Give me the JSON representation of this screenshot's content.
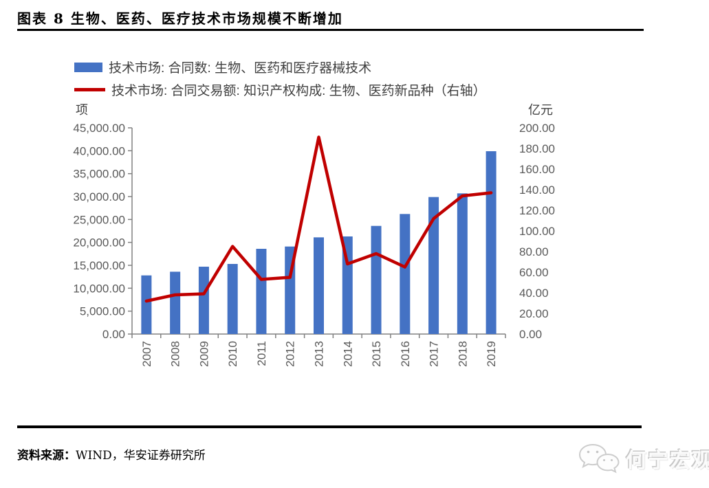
{
  "figure": {
    "title": "图表 8  生物、医药、医疗技术市场规模不断增加",
    "source_label": "资料来源：",
    "source_text": "WIND，华安证券研究所"
  },
  "legend": {
    "items": [
      {
        "marker": "bar",
        "color": "#4472C4",
        "label": "技术市场: 合同数: 生物、医药和医疗器械技术"
      },
      {
        "marker": "line",
        "color": "#C00000",
        "label": "技术市场: 合同交易额: 知识产权构成: 生物、医药新品种（右轴）"
      }
    ]
  },
  "axes": {
    "left_unit": "项",
    "right_unit": "亿元"
  },
  "watermark": {
    "icon": "wechat-icon",
    "text": "何宁宏观"
  },
  "chart_data": {
    "type": "bar",
    "subtype": "combo-bar-line-dual-axis",
    "title": "图表 8  生物、医药、医疗技术市场规模不断增加",
    "categories": [
      "2007",
      "2008",
      "2009",
      "2010",
      "2011",
      "2012",
      "2013",
      "2014",
      "2015",
      "2016",
      "2017",
      "2018",
      "2019"
    ],
    "series": [
      {
        "name": "技术市场: 合同数: 生物、医药和医疗器械技术",
        "type": "bar",
        "axis": "left",
        "color": "#4472C4",
        "values": [
          12800,
          13600,
          14700,
          15300,
          18600,
          19100,
          21100,
          21300,
          23600,
          26200,
          29900,
          30700,
          39900
        ]
      },
      {
        "name": "技术市场: 合同交易额: 知识产权构成: 生物、医药新品种（右轴）",
        "type": "line",
        "axis": "right",
        "color": "#C00000",
        "values": [
          32,
          38,
          39,
          85,
          53,
          55,
          191,
          68,
          78,
          65,
          112,
          134,
          137
        ]
      }
    ],
    "left_axis": {
      "unit": "项",
      "min": 0,
      "max": 45000,
      "step": 5000,
      "format": "comma_2dp"
    },
    "right_axis": {
      "unit": "亿元",
      "min": 0,
      "max": 200,
      "step": 20,
      "format": "plain_2dp"
    },
    "grid": false,
    "legend_position": "top-left",
    "tick_label_color": "#595959",
    "axis_line_color": "#808080"
  }
}
